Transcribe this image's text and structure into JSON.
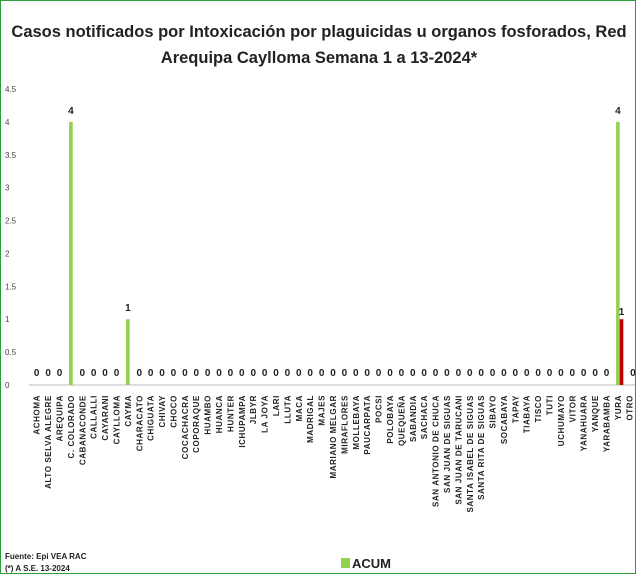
{
  "chart_data": {
    "type": "bar",
    "title_line1": "Casos notificados por Intoxicación por plaguicidas u organos fosforados, Red",
    "title_line2": "Arequipa Caylloma  Semana 1 a 13-2024*",
    "ylim": [
      0,
      4.5
    ],
    "yticks": [
      "0",
      "0.5",
      "1",
      "1.5",
      "2",
      "2.5",
      "3",
      "3.5",
      "4",
      "4.5"
    ],
    "grid": false,
    "legend_position": "bottom",
    "categories": [
      "ACHOMA",
      "ALTO SELVA ALEGRE",
      "AREQUIPA",
      "C. COLORADO",
      "CABANACONDE",
      "CALLALLI",
      "CAYARANI",
      "CAYLLOMA",
      "CAYMA",
      "CHARACATO",
      "CHIGUATA",
      "CHIVAY",
      "CHOCO",
      "COCACHACRA",
      "COPORAQUE",
      "HUAMBO",
      "HUANCA",
      "HUNTER",
      "ICHUPAMPA",
      "JLBYR",
      "LA JOYA",
      "LARI",
      "LLUTA",
      "MACA",
      "MADRIGAL",
      "MAJES",
      "MARIANO MELGAR",
      "MIRAFLORES",
      "MOLLEBAYA",
      "PAUCARPATA",
      "POCSI",
      "POLOBAYA",
      "QUEQUEÑA",
      "SABANDIA",
      "SACHACA",
      "SAN ANTONIO DE CHUCA",
      "SAN JUAN DE SIGUAS",
      "SAN JUAN DE TARUCANI",
      "SANTA ISABEL DE SIGUAS",
      "SANTA RITA DE SIGUAS",
      "SIBAYO",
      "SOCABAYA",
      "TAPAY",
      "TIABAYA",
      "TISCO",
      "TUTI",
      "UCHUMAYO",
      "VITOR",
      "YANAHUARA",
      "YANQUE",
      "YARABAMBA",
      "YURA",
      "OTRO"
    ],
    "series": [
      {
        "name": "ACUM",
        "color": "#92d050",
        "values": [
          0,
          0,
          0,
          4,
          0,
          0,
          0,
          0,
          1,
          0,
          0,
          0,
          0,
          0,
          0,
          0,
          0,
          0,
          0,
          0,
          0,
          0,
          0,
          0,
          0,
          0,
          0,
          0,
          0,
          0,
          0,
          0,
          0,
          0,
          0,
          0,
          0,
          0,
          0,
          0,
          0,
          0,
          0,
          0,
          0,
          0,
          0,
          0,
          0,
          0,
          0,
          4,
          0
        ]
      },
      {
        "name": "",
        "color": "#c00000",
        "values": [
          null,
          null,
          null,
          null,
          null,
          null,
          null,
          null,
          null,
          null,
          null,
          null,
          null,
          null,
          null,
          null,
          null,
          null,
          null,
          null,
          null,
          null,
          null,
          null,
          null,
          null,
          null,
          null,
          null,
          null,
          null,
          null,
          null,
          null,
          null,
          null,
          null,
          null,
          null,
          null,
          null,
          null,
          null,
          null,
          null,
          null,
          null,
          null,
          null,
          null,
          null,
          1,
          0
        ]
      }
    ],
    "data_labels_series0": [
      "0",
      "0",
      "0",
      "4",
      "0",
      "0",
      "0",
      "0",
      "1",
      "0",
      "0",
      "0",
      "0",
      "0",
      "0",
      "0",
      "0",
      "0",
      "0",
      "0",
      "0",
      "0",
      "0",
      "0",
      "0",
      "0",
      "0",
      "0",
      "0",
      "0",
      "0",
      "0",
      "0",
      "0",
      "0",
      "0",
      "0",
      "0",
      "0",
      "0",
      "0",
      "0",
      "0",
      "0",
      "0",
      "0",
      "0",
      "0",
      "0",
      "0",
      "0",
      "4",
      ""
    ],
    "data_labels_series1": [
      "",
      "",
      "",
      "",
      "",
      "",
      "",
      "",
      "",
      "",
      "",
      "",
      "",
      "",
      "",
      "",
      "",
      "",
      "",
      "",
      "",
      "",
      "",
      "",
      "",
      "",
      "",
      "",
      "",
      "",
      "",
      "",
      "",
      "",
      "",
      "",
      "",
      "",
      "",
      "",
      "",
      "",
      "",
      "",
      "",
      "",
      "",
      "",
      "",
      "",
      "",
      "1",
      "0"
    ]
  },
  "footer": {
    "source": "Fuente: Epi VEA RAC",
    "note": "(*) A S.E. 13-2024"
  },
  "legend": {
    "label": "ACUM",
    "color": "#92d050"
  }
}
